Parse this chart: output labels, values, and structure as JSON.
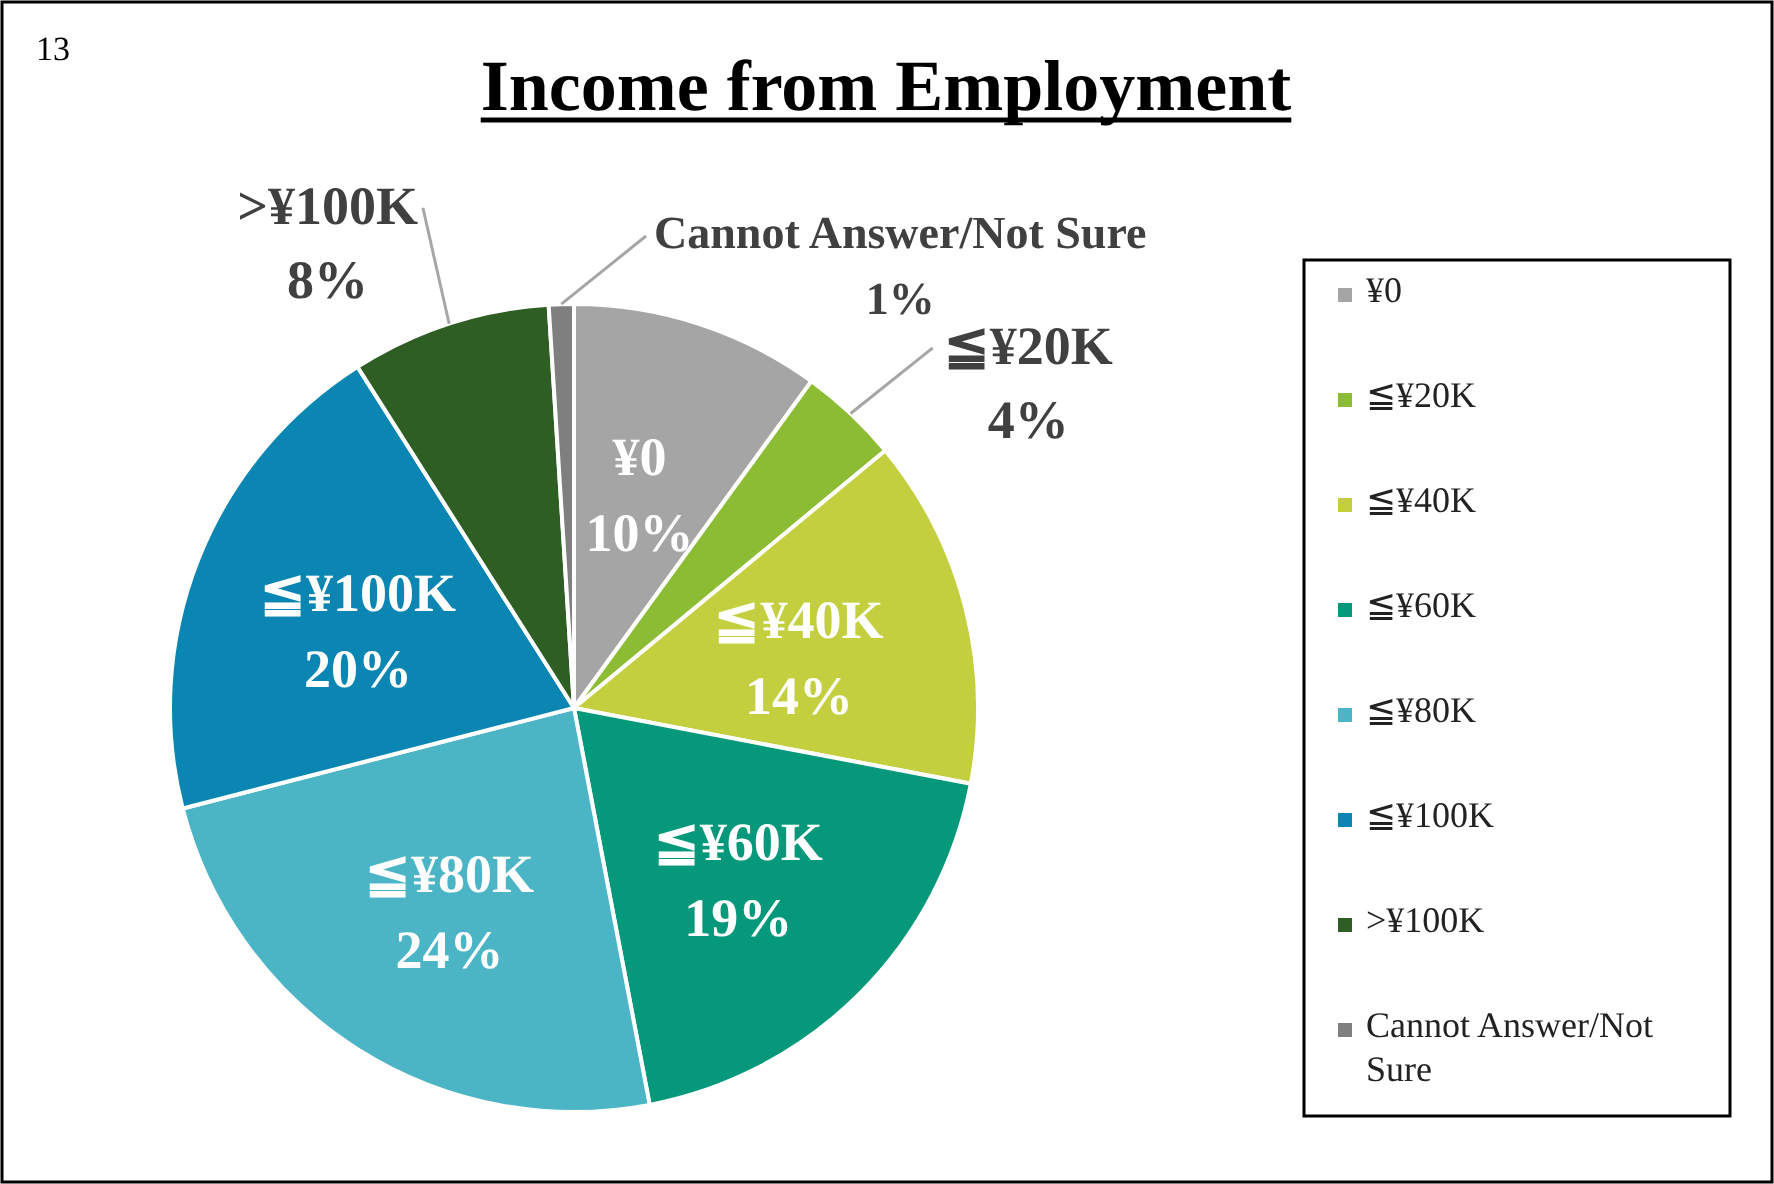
{
  "chart_data": {
    "type": "pie",
    "title": "Income from Employment",
    "annotations": [
      "13"
    ],
    "categories": [
      "¥0",
      "≦¥20K",
      "≦¥40K",
      "≦¥60K",
      "≦¥80K",
      "≦¥100K",
      ">¥100K",
      "Cannot Answer/Not Sure"
    ],
    "values": [
      10,
      4,
      14,
      19,
      24,
      20,
      8,
      1
    ],
    "colors": [
      "#a5a5a5",
      "#8cbb34",
      "#c3cf3f",
      "#06987a",
      "#4bb5c6",
      "#0b86b2",
      "#2e5e24",
      "#7f7f7f"
    ],
    "value_labels": [
      "10%",
      "4%",
      "14%",
      "19%",
      "24%",
      "20%",
      "8%",
      "1%"
    ],
    "legend": "right"
  }
}
